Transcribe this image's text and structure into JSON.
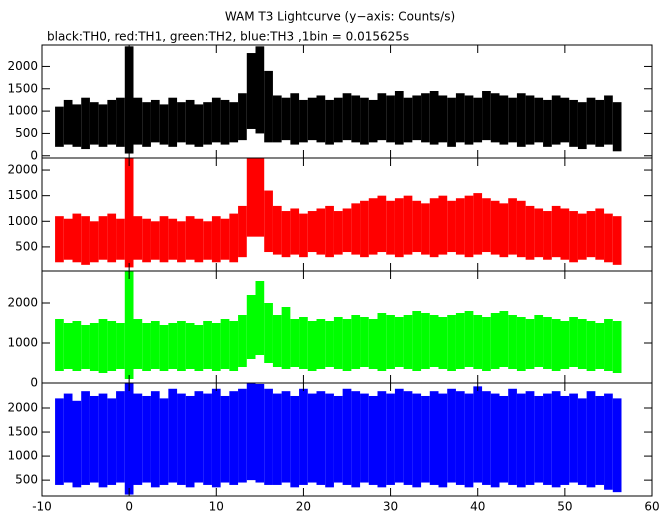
{
  "title": "WAM T3 Lightcurve (y−axis: Counts/s)",
  "subtitle": "black:TH0, red:TH1, green:TH2, blue:TH3 ,1bin = 0.015625s",
  "chart_data": {
    "type": "range",
    "xlim": [
      -10,
      60
    ],
    "xticks": [
      -10,
      0,
      10,
      20,
      30,
      40,
      50,
      60
    ],
    "x": [
      -8,
      -7,
      -6,
      -5,
      -4,
      -3,
      -2,
      -1,
      0,
      1,
      2,
      3,
      4,
      5,
      6,
      7,
      8,
      9,
      10,
      11,
      12,
      13,
      14,
      15,
      16,
      17,
      18,
      19,
      20,
      21,
      22,
      23,
      24,
      25,
      26,
      27,
      28,
      29,
      30,
      31,
      32,
      33,
      34,
      35,
      36,
      37,
      38,
      39,
      40,
      41,
      42,
      43,
      44,
      45,
      46,
      47,
      48,
      49,
      50,
      51,
      52,
      53,
      54,
      55,
      56
    ],
    "panels": [
      {
        "color": "#000000",
        "ylim": [
          -50,
          2480
        ],
        "yticks": [
          0,
          500,
          1000,
          1500,
          2000
        ],
        "high": [
          1100,
          1250,
          1150,
          1300,
          1200,
          1150,
          1250,
          1300,
          2450,
          1300,
          1200,
          1250,
          1150,
          1300,
          1200,
          1250,
          1150,
          1200,
          1300,
          1250,
          1200,
          1400,
          2300,
          2450,
          1900,
          1350,
          1300,
          1400,
          1250,
          1300,
          1350,
          1250,
          1300,
          1400,
          1350,
          1300,
          1250,
          1400,
          1350,
          1450,
          1300,
          1350,
          1400,
          1450,
          1350,
          1300,
          1400,
          1350,
          1300,
          1450,
          1400,
          1350,
          1300,
          1400,
          1350,
          1300,
          1250,
          1350,
          1300,
          1250,
          1200,
          1300,
          1250,
          1350,
          1200
        ],
        "low": [
          200,
          250,
          200,
          150,
          250,
          200,
          250,
          200,
          50,
          250,
          200,
          300,
          250,
          200,
          300,
          250,
          200,
          250,
          300,
          250,
          300,
          350,
          600,
          500,
          300,
          300,
          350,
          250,
          300,
          350,
          300,
          250,
          300,
          350,
          300,
          250,
          300,
          350,
          300,
          250,
          300,
          350,
          300,
          250,
          300,
          200,
          300,
          250,
          300,
          350,
          300,
          250,
          300,
          200,
          250,
          300,
          200,
          250,
          300,
          200,
          150,
          250,
          200,
          250,
          100
        ]
      },
      {
        "color": "#ff0000",
        "ylim": [
          30,
          2235
        ],
        "yticks": [
          500,
          1000,
          1500,
          2000
        ],
        "high": [
          1100,
          1050,
          1150,
          1100,
          1000,
          1100,
          1150,
          1050,
          2300,
          1100,
          1050,
          1000,
          1100,
          1050,
          1000,
          1100,
          1050,
          1000,
          1100,
          1050,
          1150,
          1300,
          2300,
          2300,
          1600,
          1300,
          1200,
          1250,
          1150,
          1200,
          1250,
          1300,
          1200,
          1250,
          1350,
          1400,
          1450,
          1500,
          1400,
          1450,
          1500,
          1400,
          1350,
          1450,
          1500,
          1400,
          1450,
          1500,
          1550,
          1450,
          1400,
          1350,
          1450,
          1400,
          1300,
          1250,
          1200,
          1300,
          1250,
          1200,
          1150,
          1200,
          1250,
          1150,
          1100
        ],
        "low": [
          200,
          250,
          200,
          150,
          200,
          250,
          200,
          250,
          100,
          250,
          200,
          250,
          200,
          250,
          200,
          250,
          200,
          250,
          200,
          250,
          200,
          300,
          700,
          700,
          400,
          350,
          300,
          350,
          300,
          400,
          350,
          300,
          350,
          400,
          350,
          300,
          350,
          400,
          350,
          300,
          350,
          400,
          350,
          300,
          350,
          400,
          350,
          300,
          350,
          400,
          350,
          300,
          350,
          300,
          250,
          300,
          250,
          300,
          250,
          200,
          250,
          300,
          250,
          200,
          150
        ]
      },
      {
        "color": "#00ff00",
        "ylim": [
          0,
          2800
        ],
        "yticks": [
          0,
          1000,
          2000
        ],
        "high": [
          1600,
          1500,
          1550,
          1450,
          1500,
          1600,
          1550,
          1500,
          2800,
          1600,
          1500,
          1550,
          1450,
          1500,
          1550,
          1500,
          1450,
          1550,
          1500,
          1600,
          1550,
          1700,
          2200,
          2550,
          2000,
          1700,
          1900,
          1600,
          1650,
          1550,
          1600,
          1550,
          1650,
          1600,
          1700,
          1650,
          1600,
          1750,
          1700,
          1650,
          1700,
          1800,
          1750,
          1700,
          1650,
          1700,
          1750,
          1800,
          1700,
          1650,
          1750,
          1800,
          1700,
          1650,
          1600,
          1700,
          1650,
          1600,
          1550,
          1650,
          1600,
          1550,
          1500,
          1600,
          1550
        ],
        "low": [
          300,
          350,
          300,
          350,
          300,
          250,
          300,
          350,
          100,
          350,
          300,
          350,
          300,
          350,
          300,
          350,
          300,
          350,
          300,
          350,
          300,
          400,
          600,
          700,
          500,
          400,
          350,
          400,
          350,
          300,
          350,
          400,
          350,
          300,
          350,
          400,
          350,
          300,
          350,
          400,
          350,
          300,
          350,
          400,
          350,
          300,
          350,
          400,
          350,
          300,
          350,
          400,
          350,
          300,
          350,
          400,
          350,
          300,
          350,
          400,
          350,
          300,
          350,
          300,
          250
        ]
      },
      {
        "color": "#0000ff",
        "ylim": [
          170,
          2520
        ],
        "yticks": [
          500,
          1000,
          1500,
          2000
        ],
        "high": [
          2200,
          2300,
          2150,
          2350,
          2250,
          2300,
          2200,
          2350,
          2520,
          2300,
          2250,
          2350,
          2200,
          2400,
          2300,
          2250,
          2350,
          2300,
          2400,
          2250,
          2350,
          2400,
          2520,
          2500,
          2400,
          2300,
          2350,
          2250,
          2400,
          2300,
          2350,
          2300,
          2250,
          2400,
          2350,
          2300,
          2250,
          2350,
          2300,
          2400,
          2350,
          2300,
          2250,
          2350,
          2300,
          2400,
          2350,
          2300,
          2450,
          2350,
          2300,
          2250,
          2400,
          2300,
          2350,
          2250,
          2300,
          2350,
          2250,
          2300,
          2200,
          2350,
          2250,
          2300,
          2200
        ],
        "low": [
          400,
          450,
          350,
          400,
          450,
          350,
          400,
          450,
          200,
          400,
          450,
          350,
          400,
          450,
          400,
          350,
          450,
          400,
          350,
          450,
          400,
          450,
          500,
          450,
          400,
          400,
          450,
          350,
          400,
          450,
          400,
          350,
          450,
          400,
          350,
          450,
          400,
          350,
          400,
          450,
          400,
          350,
          450,
          400,
          350,
          450,
          400,
          350,
          450,
          400,
          350,
          450,
          400,
          350,
          400,
          450,
          400,
          350,
          400,
          450,
          400,
          350,
          400,
          300,
          250
        ]
      }
    ]
  }
}
